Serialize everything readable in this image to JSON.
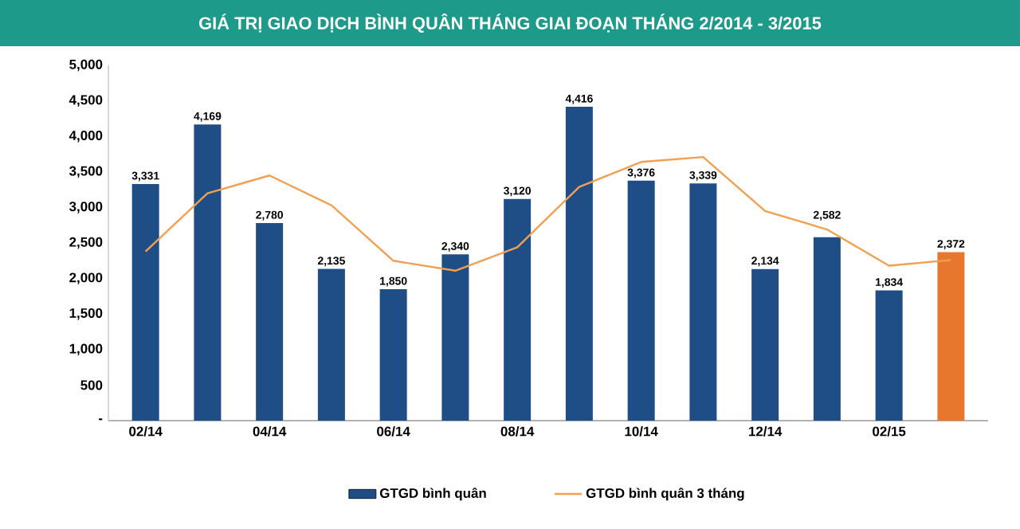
{
  "chart_data": {
    "type": "bar",
    "title": "GIÁ TRỊ GIAO DỊCH BÌNH QUÂN THÁNG GIAI ĐOẠN THÁNG 2/2014 - 3/2015",
    "categories": [
      "02/14",
      null,
      "04/14",
      null,
      "06/14",
      null,
      "08/14",
      null,
      "10/14",
      null,
      "12/14",
      null,
      "02/15",
      null
    ],
    "series": [
      {
        "name": "GTGD bình quân",
        "color": "#1f4e87",
        "colors": [
          "#1f4e87",
          "#1f4e87",
          "#1f4e87",
          "#1f4e87",
          "#1f4e87",
          "#1f4e87",
          "#1f4e87",
          "#1f4e87",
          "#1f4e87",
          "#1f4e87",
          "#1f4e87",
          "#1f4e87",
          "#1f4e87",
          "#e8772e"
        ],
        "values": [
          3331,
          4169,
          2780,
          2135,
          1850,
          2340,
          3120,
          4416,
          3376,
          3339,
          2134,
          2582,
          1834,
          2372
        ],
        "value_labels": [
          "3,331",
          "4,169",
          "2,780",
          "2,135",
          "1,850",
          "2,340",
          "3,120",
          "4,416",
          "3,376",
          "3,339",
          "2,134",
          "2,582",
          "1,834",
          "2,372"
        ]
      },
      {
        "name": "GTGD bình quân 3 tháng",
        "type": "line",
        "color": "#f0a050",
        "values": [
          2380,
          3200,
          3450,
          3030,
          2250,
          2110,
          2440,
          3290,
          3640,
          3710,
          2950,
          2690,
          2180,
          2260
        ]
      }
    ],
    "ylim": [
      0,
      5000
    ],
    "yticks": [
      {
        "value": 0,
        "label": "-"
      },
      {
        "value": 500,
        "label": "500"
      },
      {
        "value": 1000,
        "label": "1,000"
      },
      {
        "value": 1500,
        "label": "1,500"
      },
      {
        "value": 2000,
        "label": "2,000"
      },
      {
        "value": 2500,
        "label": "2,500"
      },
      {
        "value": 3000,
        "label": "3,000"
      },
      {
        "value": 3500,
        "label": "3,500"
      },
      {
        "value": 4000,
        "label": "4,000"
      },
      {
        "value": 4500,
        "label": "4,500"
      },
      {
        "value": 5000,
        "label": "5,000"
      }
    ],
    "legend": "bottom",
    "grid": false,
    "marker": "none"
  }
}
